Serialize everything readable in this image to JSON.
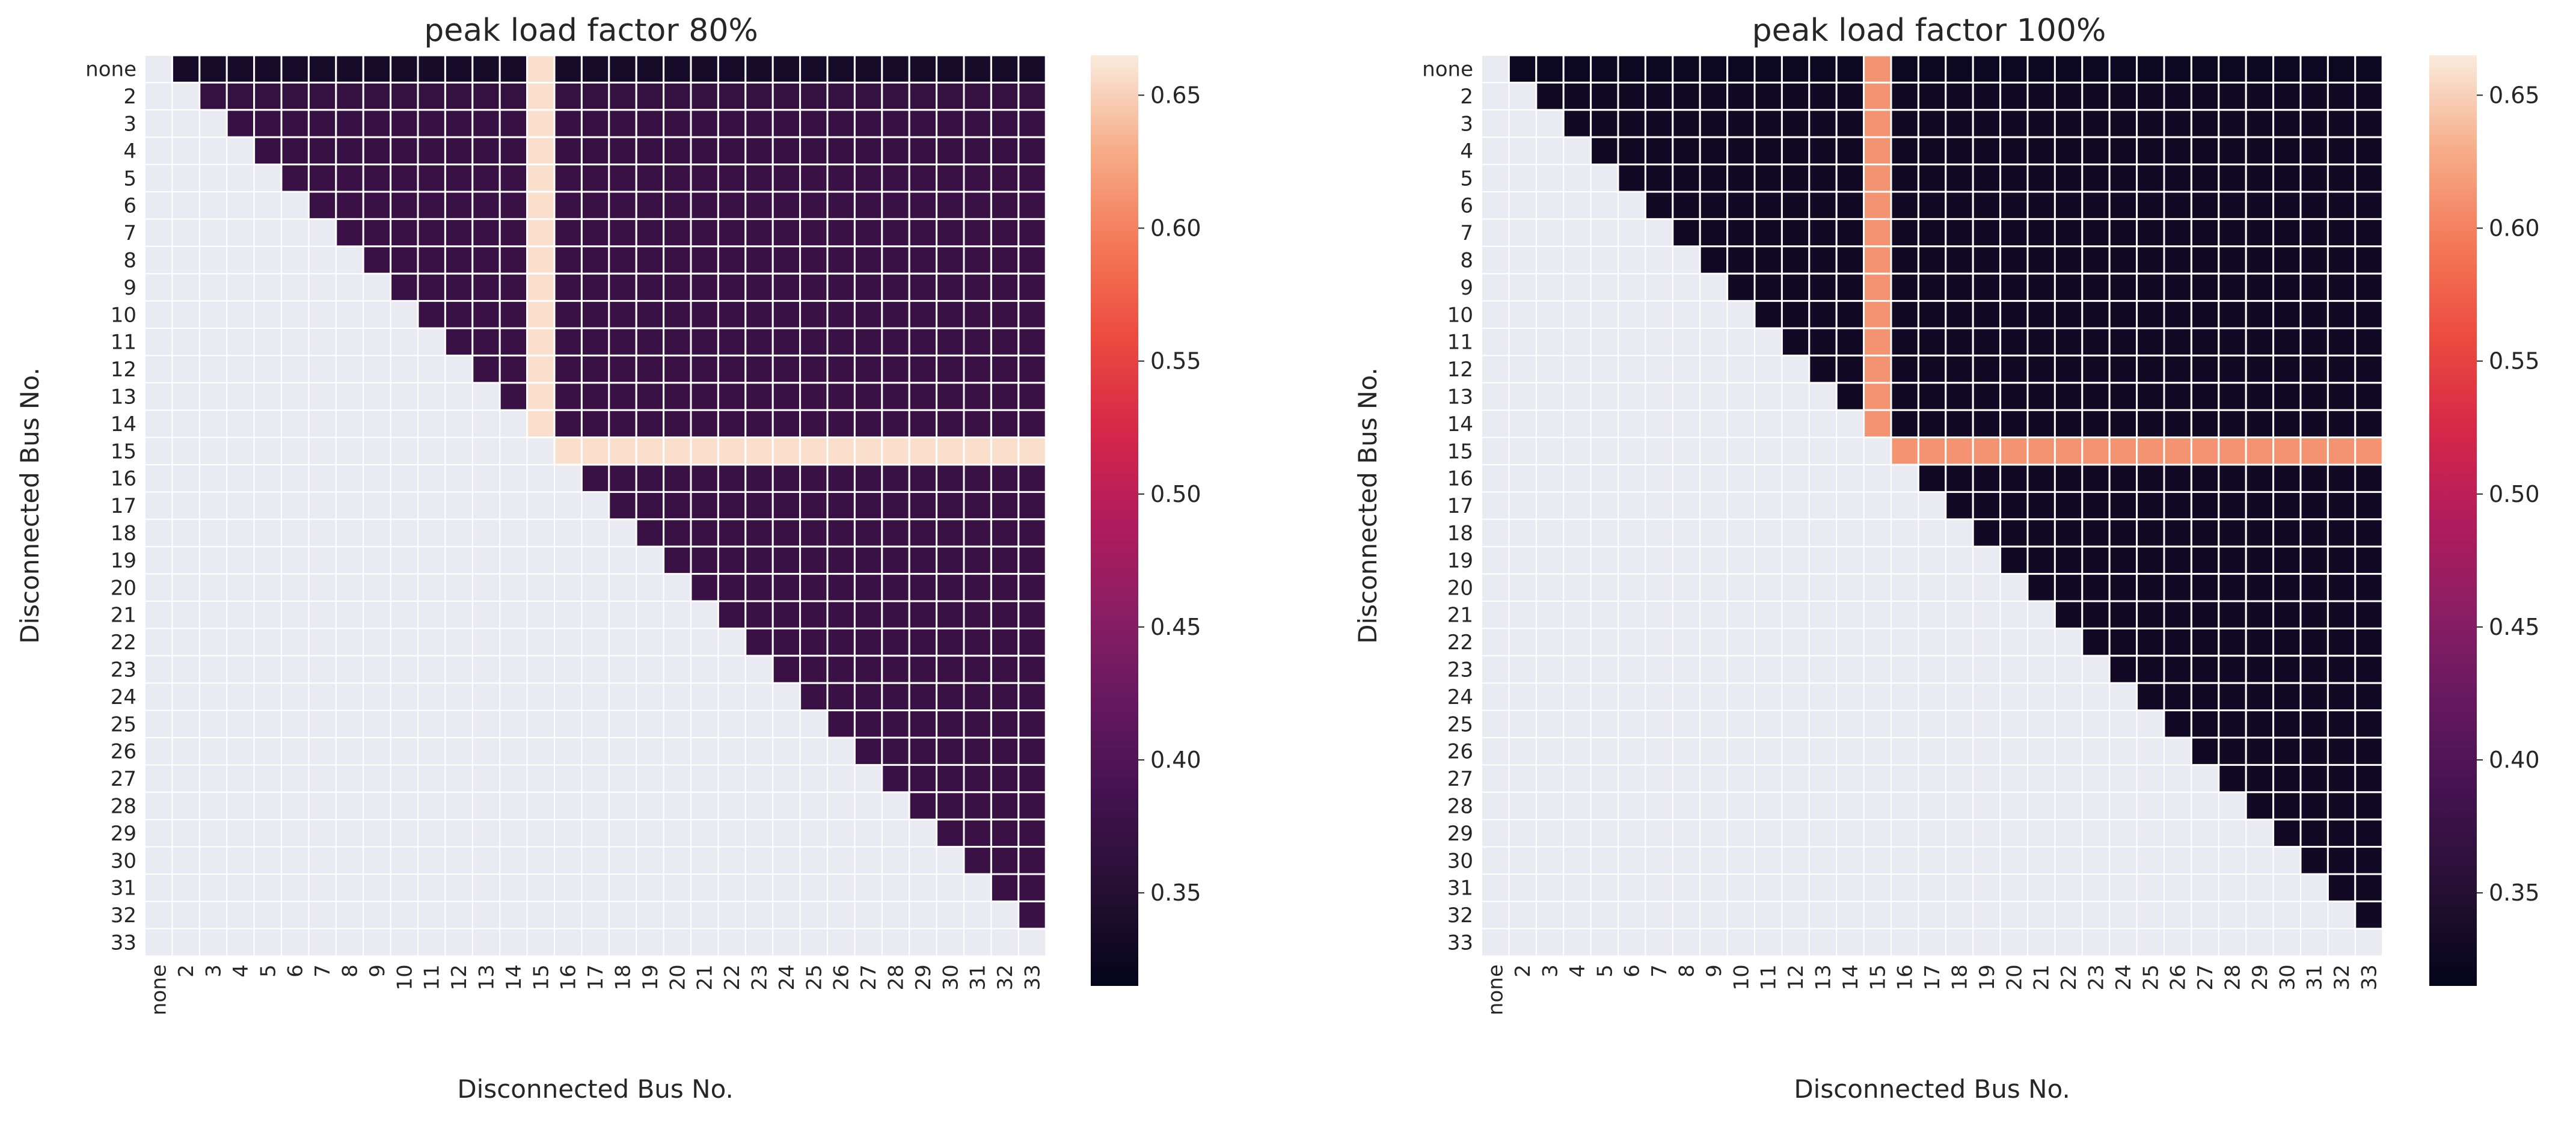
{
  "chart_data": [
    {
      "type": "heatmap",
      "title": "peak load factor 80%",
      "xlabel": "Disconnected Bus No.",
      "ylabel": "Disconnected Bus No.",
      "categories": [
        "none",
        "2",
        "3",
        "4",
        "5",
        "6",
        "7",
        "8",
        "9",
        "10",
        "11",
        "12",
        "13",
        "14",
        "15",
        "16",
        "17",
        "18",
        "19",
        "20",
        "21",
        "22",
        "23",
        "24",
        "25",
        "26",
        "27",
        "28",
        "29",
        "30",
        "31",
        "32",
        "33"
      ],
      "mask": "upper triangle only (column index > row index); diagonal and lower triangle are blank",
      "base_value": 0.375,
      "values_by_row": {
        "none": 0.335,
        "2": 0.37,
        "3": 0.372,
        "4": 0.373,
        "5": 0.375
      },
      "special_bus": "15",
      "special_value": 0.658,
      "colorbar": {
        "vmin": 0.315,
        "vmax": 0.665,
        "ticks": [
          "0.35",
          "0.40",
          "0.45",
          "0.50",
          "0.55",
          "0.60",
          "0.65"
        ],
        "colormap": "rocket"
      }
    },
    {
      "type": "heatmap",
      "title": "peak load factor 100%",
      "xlabel": "Disconnected Bus No.",
      "ylabel": "Disconnected Bus No.",
      "categories": [
        "none",
        "2",
        "3",
        "4",
        "5",
        "6",
        "7",
        "8",
        "9",
        "10",
        "11",
        "12",
        "13",
        "14",
        "15",
        "16",
        "17",
        "18",
        "19",
        "20",
        "21",
        "22",
        "23",
        "24",
        "25",
        "26",
        "27",
        "28",
        "29",
        "30",
        "31",
        "32",
        "33"
      ],
      "mask": "upper triangle only (column index > row index); diagonal and lower triangle are blank",
      "base_value": 0.33,
      "values_by_row": {
        "none": 0.325,
        "2": 0.33,
        "3": 0.33,
        "4": 0.33,
        "5": 0.33
      },
      "special_bus": "15",
      "special_value": 0.612,
      "colorbar": {
        "vmin": 0.315,
        "vmax": 0.665,
        "ticks": [
          "0.35",
          "0.40",
          "0.45",
          "0.50",
          "0.55",
          "0.60",
          "0.65"
        ],
        "colormap": "rocket"
      }
    }
  ]
}
